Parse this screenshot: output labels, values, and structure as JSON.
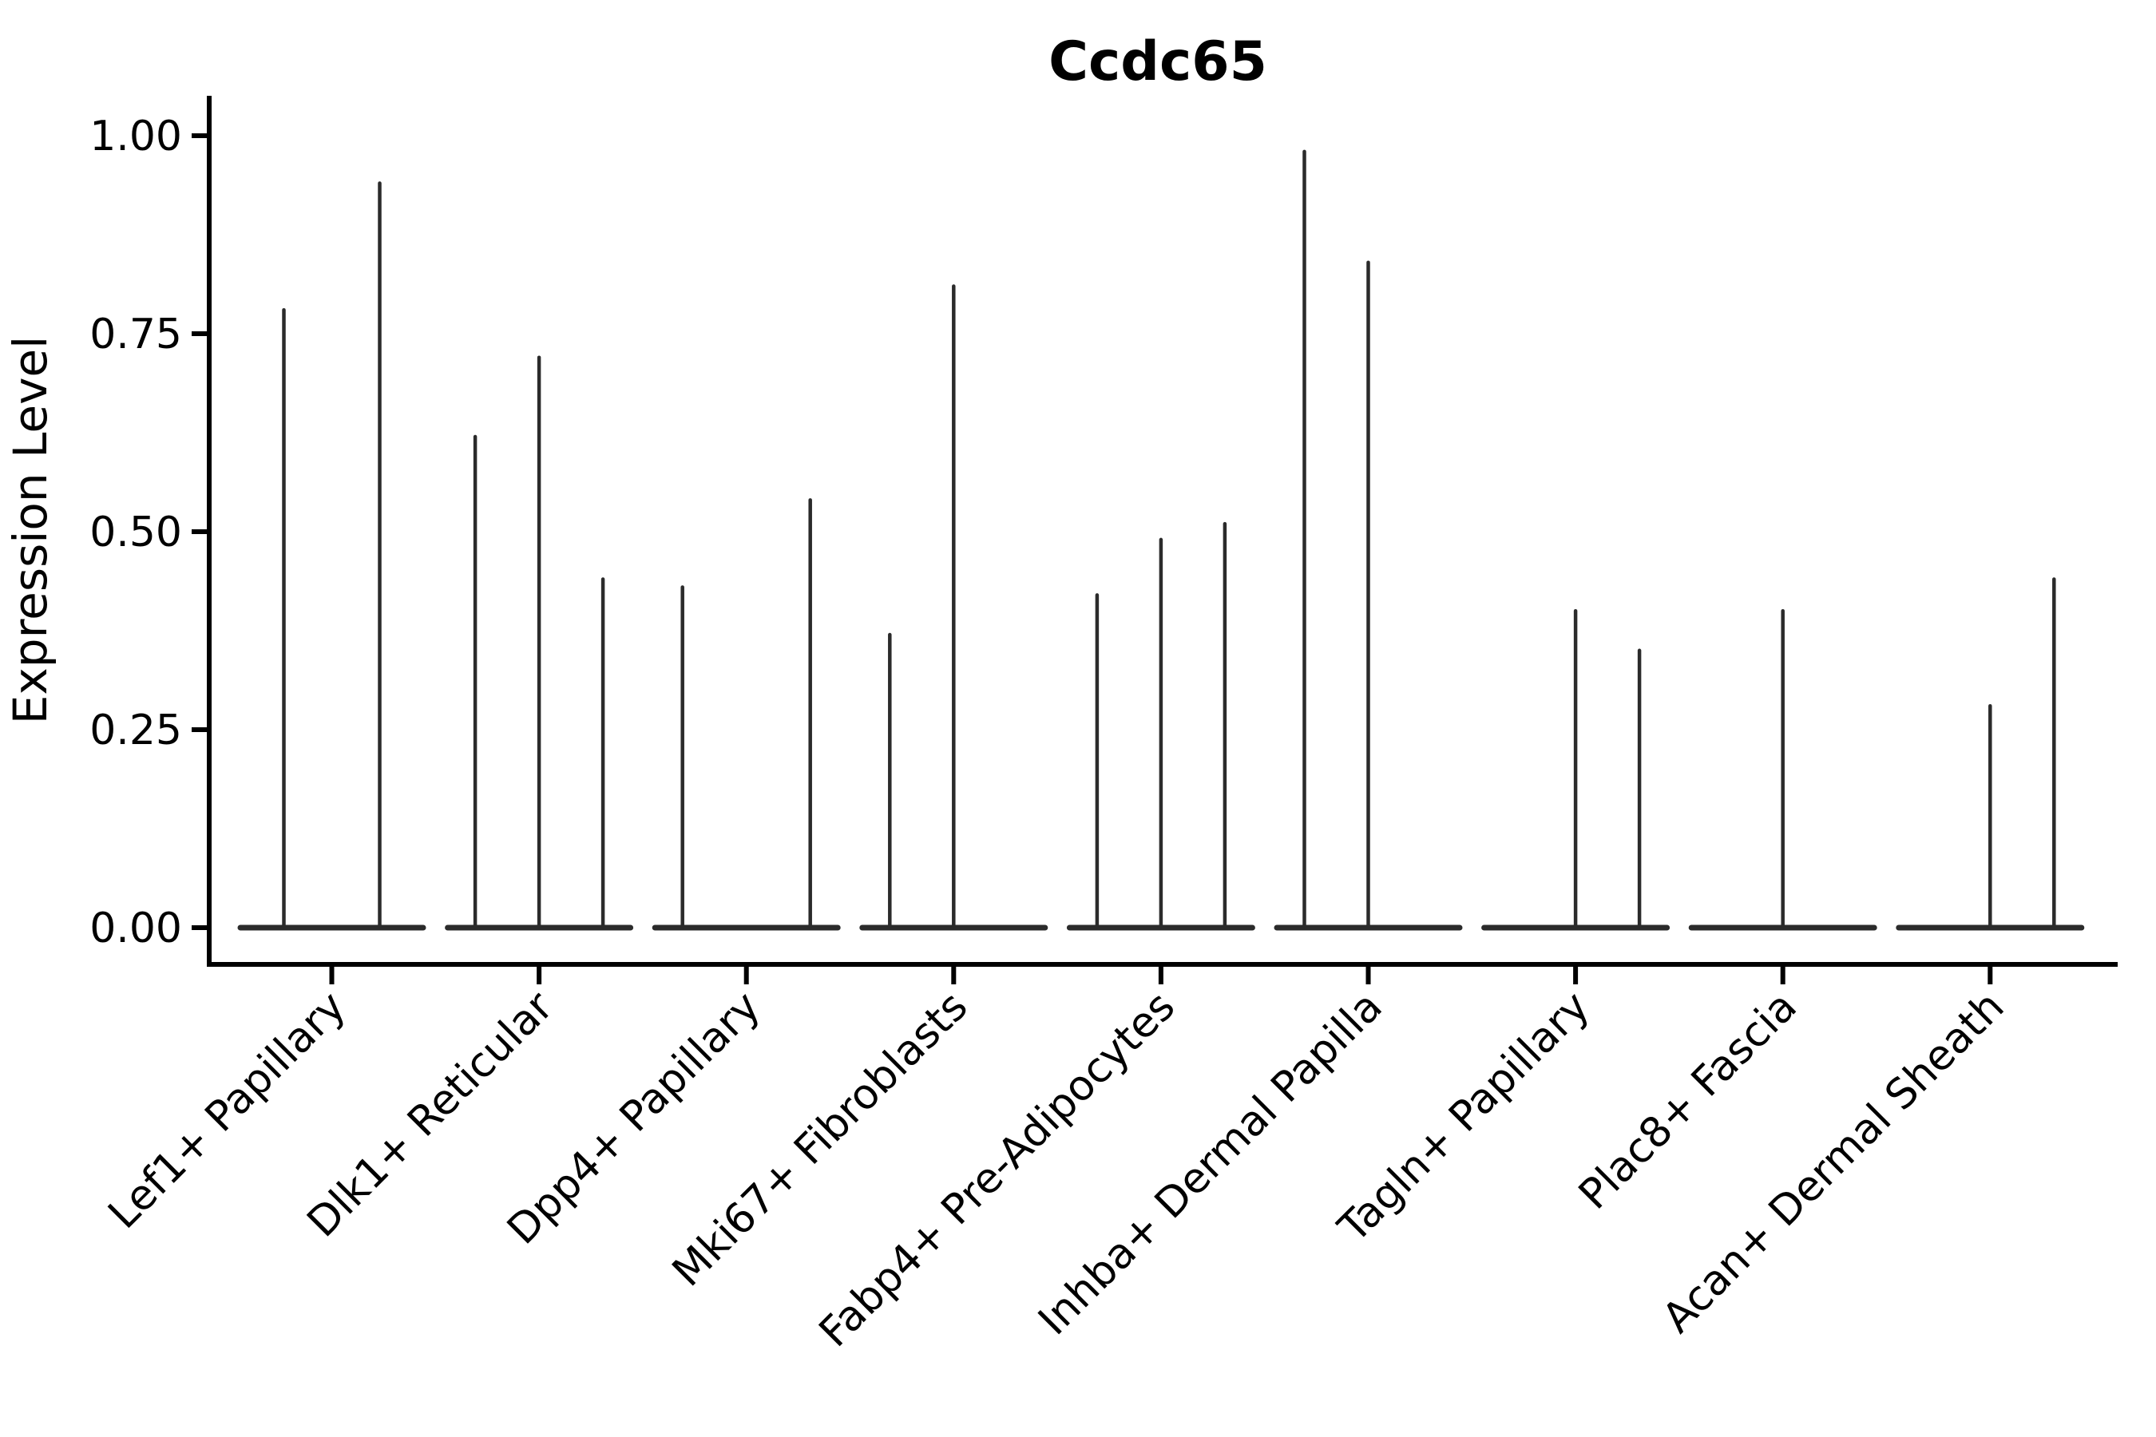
{
  "chart_data": {
    "type": "violin",
    "title": "Ccdc65",
    "ylabel": "Expression Level",
    "xlabel": "",
    "ylim": [
      0,
      1.0
    ],
    "grid": false,
    "legend": "none",
    "y_ticks": [
      {
        "value": 0.0,
        "label": "0.00"
      },
      {
        "value": 0.25,
        "label": "0.25"
      },
      {
        "value": 0.5,
        "label": "0.50"
      },
      {
        "value": 0.75,
        "label": "0.75"
      },
      {
        "value": 1.0,
        "label": "1.00"
      }
    ],
    "categories": [
      "Lef1+ Papillary",
      "Dlk1+ Reticular",
      "Dpp4+ Papillary",
      "Mki67+ Fibroblasts",
      "Fabp4+ Pre-Adipocytes",
      "Inhba+ Dermal Papilla",
      "Tagln+ Papillary",
      "Plac8+ Fascia",
      "Acan+ Dermal Sheath"
    ],
    "groups": [
      {
        "category": "Lef1+ Papillary",
        "violin_max_values": [
          0.78,
          0.94
        ]
      },
      {
        "category": "Dlk1+ Reticular",
        "violin_max_values": [
          0.62,
          0.72,
          0.44
        ]
      },
      {
        "category": "Dpp4+ Papillary",
        "violin_max_values": [
          0.43,
          0.0,
          0.54
        ]
      },
      {
        "category": "Mki67+ Fibroblasts",
        "violin_max_values": [
          0.37,
          0.81,
          0.0
        ]
      },
      {
        "category": "Fabp4+ Pre-Adipocytes",
        "violin_max_values": [
          0.42,
          0.49,
          0.51
        ]
      },
      {
        "category": "Inhba+ Dermal Papilla",
        "violin_max_values": [
          0.98,
          0.84,
          0.0
        ]
      },
      {
        "category": "Tagln+ Papillary",
        "violin_max_values": [
          0.0,
          0.4,
          0.35
        ]
      },
      {
        "category": "Plac8+ Fascia",
        "violin_max_values": [
          0.0,
          0.4,
          0.0
        ]
      },
      {
        "category": "Acan+ Dermal Sheath",
        "violin_max_values": [
          0.0,
          0.28,
          0.44
        ]
      }
    ],
    "colors": {
      "violin": "#2b2b2b",
      "axis": "#000000",
      "text": "#000000",
      "background": "#ffffff"
    }
  }
}
